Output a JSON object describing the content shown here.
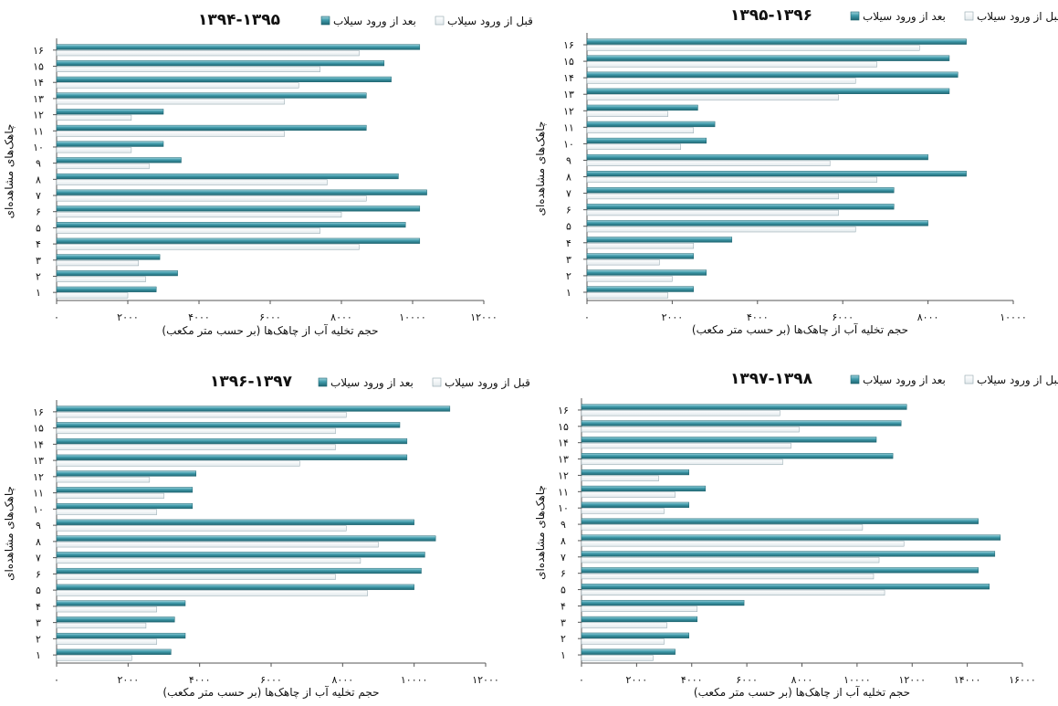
{
  "colors": {
    "after_flood": "#3f9aaa",
    "after_flood_dark": "#1f6672",
    "before_flood": "#e2e9ec",
    "before_flood_edge": "#8fa4ac",
    "axis": "#555555"
  },
  "chart_data": [
    {
      "type": "bar",
      "orientation": "horizontal",
      "position_in_figure": "top-left",
      "title": "۱۳۹۴-۱۳۹۵",
      "legend": {
        "after_label": "بعد از ورود سیلاب",
        "before_label": "قبل از ورود سیلاب"
      },
      "xlabel": "حجم تخلیه آب از چاهک‌ها (بر حسب متر مکعب)",
      "ylabel": "چاهک‌های مشاهده‌ای",
      "xlim": [
        0,
        12000
      ],
      "xticks": [
        0,
        2000,
        4000,
        6000,
        8000,
        10000,
        12000
      ],
      "xtick_labels": [
        "۰",
        "۲۰۰۰",
        "۴۰۰۰",
        "۶۰۰۰",
        "۸۰۰۰",
        "۱۰۰۰۰",
        "۱۲۰۰۰"
      ],
      "categories": [
        "۱",
        "۲",
        "۳",
        "۴",
        "۵",
        "۶",
        "۷",
        "۸",
        "۹",
        "۱۰",
        "۱۱",
        "۱۲",
        "۱۳",
        "۱۴",
        "۱۵",
        "۱۶"
      ],
      "series": [
        {
          "name": "بعد از ورود سیلاب",
          "values": [
            2800,
            3400,
            2900,
            10200,
            9800,
            10200,
            10400,
            9600,
            3500,
            3000,
            8700,
            3000,
            8700,
            9400,
            9200,
            10200
          ]
        },
        {
          "name": "قبل از ورود سیلاب",
          "values": [
            2000,
            2500,
            2300,
            8500,
            7400,
            8000,
            8700,
            7600,
            2600,
            2100,
            6400,
            2100,
            6400,
            6800,
            7400,
            8500
          ]
        }
      ]
    },
    {
      "type": "bar",
      "orientation": "horizontal",
      "position_in_figure": "top-right",
      "title": "۱۳۹۵-۱۳۹۶",
      "legend": {
        "after_label": "بعد از ورود سیلاب",
        "before_label": "قبل از ورود سیلاب"
      },
      "xlabel": "حجم تخلیه آب از چاهک‌ها (بر حسب متر مکعب)",
      "ylabel": "چاهک‌های مشاهده‌ای",
      "xlim": [
        0,
        10000
      ],
      "xticks": [
        0,
        2000,
        4000,
        6000,
        8000,
        10000
      ],
      "xtick_labels": [
        "۰",
        "۲۰۰۰",
        "۴۰۰۰",
        "۶۰۰۰",
        "۸۰۰۰",
        "۱۰۰۰۰"
      ],
      "categories": [
        "۱",
        "۲",
        "۳",
        "۴",
        "۵",
        "۶",
        "۷",
        "۸",
        "۹",
        "۱۰",
        "۱۱",
        "۱۲",
        "۱۳",
        "۱۴",
        "۱۵",
        "۱۶"
      ],
      "series": [
        {
          "name": "بعد از ورود سیلاب",
          "values": [
            2500,
            2800,
            2500,
            3400,
            8000,
            7200,
            7200,
            8900,
            8000,
            2800,
            3000,
            2600,
            8500,
            8700,
            8500,
            8900
          ]
        },
        {
          "name": "قبل از ورود سیلاب",
          "values": [
            1900,
            2000,
            1700,
            2500,
            6300,
            5900,
            5900,
            6800,
            5700,
            2200,
            2500,
            1900,
            5900,
            6300,
            6800,
            7800
          ]
        }
      ]
    },
    {
      "type": "bar",
      "orientation": "horizontal",
      "position_in_figure": "bottom-left",
      "title": "۱۳۹۶-۱۳۹۷",
      "legend": {
        "after_label": "بعد از ورود سیلاب",
        "before_label": "قبل از ورود سیلاب"
      },
      "xlabel": "حجم تخلیه آب از چاهک‌ها (بر حسب متر مکعب)",
      "ylabel": "چاهک‌های مشاهده‌ای",
      "xlim": [
        0,
        12000
      ],
      "xticks": [
        0,
        2000,
        4000,
        6000,
        8000,
        10000,
        12000
      ],
      "xtick_labels": [
        "۰",
        "۲۰۰۰",
        "۴۰۰۰",
        "۶۰۰۰",
        "۸۰۰۰",
        "۱۰۰۰۰",
        "۱۲۰۰۰"
      ],
      "categories": [
        "۱",
        "۲",
        "۳",
        "۴",
        "۵",
        "۶",
        "۷",
        "۸",
        "۹",
        "۱۰",
        "۱۱",
        "۱۲",
        "۱۳",
        "۱۴",
        "۱۵",
        "۱۶"
      ],
      "series": [
        {
          "name": "بعد از ورود سیلاب",
          "values": [
            3200,
            3600,
            3300,
            3600,
            10000,
            10200,
            10300,
            10600,
            10000,
            3800,
            3800,
            3900,
            9800,
            9800,
            9600,
            11000
          ]
        },
        {
          "name": "قبل از ورود سیلاب",
          "values": [
            2100,
            2800,
            2500,
            2800,
            8700,
            7800,
            8500,
            9000,
            8100,
            2800,
            3000,
            2600,
            6800,
            7800,
            7800,
            8100
          ]
        }
      ]
    },
    {
      "type": "bar",
      "orientation": "horizontal",
      "position_in_figure": "bottom-right",
      "title": "۱۳۹۷-۱۳۹۸",
      "legend": {
        "after_label": "بعد از ورود سیلاب",
        "before_label": "قبل از ورود سیلاب"
      },
      "xlabel": "حجم تخلیه آب از چاهک‌ها (بر حسب متر مکعب)",
      "ylabel": "چاهک‌های مشاهده‌ای",
      "xlim": [
        0,
        16000
      ],
      "xticks": [
        0,
        2000,
        4000,
        6000,
        8000,
        10000,
        12000,
        14000,
        16000
      ],
      "xtick_labels": [
        "۰",
        "۲۰۰۰",
        "۴۰۰۰",
        "۶۰۰۰",
        "۸۰۰۰",
        "۱۰۰۰۰",
        "۱۲۰۰۰",
        "۱۴۰۰۰",
        "۱۶۰۰۰"
      ],
      "categories": [
        "۱",
        "۲",
        "۳",
        "۴",
        "۵",
        "۶",
        "۷",
        "۸",
        "۹",
        "۱۰",
        "۱۱",
        "۱۲",
        "۱۳",
        "۱۴",
        "۱۵",
        "۱۶"
      ],
      "series": [
        {
          "name": "بعد از ورود سیلاب",
          "values": [
            3400,
            3900,
            4200,
            5900,
            14800,
            14400,
            15000,
            15200,
            14400,
            3900,
            4500,
            3900,
            11300,
            10700,
            11600,
            11800
          ]
        },
        {
          "name": "قبل از ورود سیلاب",
          "values": [
            2600,
            3000,
            3100,
            4200,
            11000,
            10600,
            10800,
            11700,
            10200,
            3000,
            3400,
            2800,
            7300,
            7600,
            7900,
            7200
          ]
        }
      ]
    }
  ]
}
